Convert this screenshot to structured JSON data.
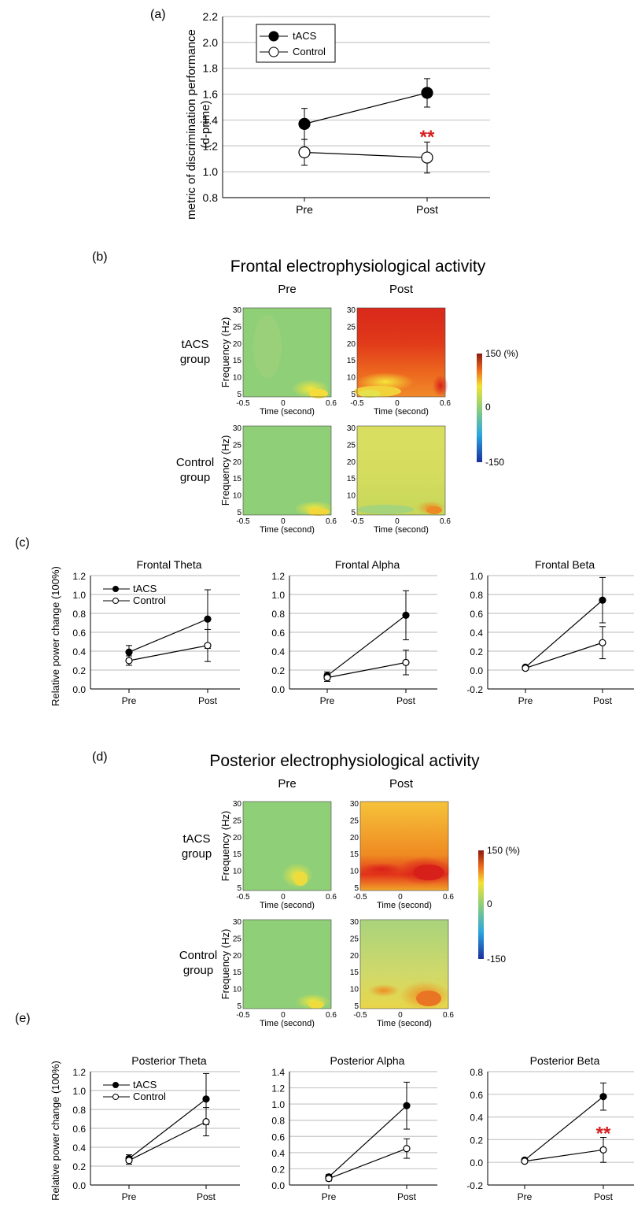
{
  "colors": {
    "tacs_marker": "#000000",
    "control_marker": "#ffffff",
    "grid": "#c8c8c8",
    "significance": "#d62020",
    "heatmap_low": "#1a2e9e",
    "heatmap_mid": "#8fcf78",
    "heatmap_high": "#8b1a10"
  },
  "panel_a": {
    "letter": "(a)",
    "ylabel": "metric of discrimination performance",
    "ylabel2": "(d-prime)",
    "significance": "**"
  },
  "panel_b": {
    "letter": "(b)",
    "title": "Frontal electrophysiological activity",
    "col_pre": "Pre",
    "col_post": "Post",
    "row_tacs_1": "tACS",
    "row_tacs_2": "group",
    "row_control_1": "Control",
    "row_control_2": "group",
    "freq_label": "Frequency (Hz)",
    "time_label": "Time (second)",
    "colorbar_max": "150 (%)",
    "colorbar_mid": "0",
    "colorbar_min": "-150"
  },
  "panel_c": {
    "letter": "(c)",
    "ylabel": "Relative power change (100%)"
  },
  "panel_d": {
    "letter": "(d)",
    "title": "Posterior electrophysiological activity",
    "col_pre": "Pre",
    "col_post": "Post",
    "row_tacs_1": "tACS",
    "row_tacs_2": "group",
    "row_control_1": "Control",
    "row_control_2": "group",
    "freq_label": "Frequency (Hz)",
    "time_label": "Time (second)",
    "colorbar_max": "150 (%)",
    "colorbar_mid": "0",
    "colorbar_min": "-150"
  },
  "panel_e": {
    "letter": "(e)",
    "ylabel": "Relative power change (100%)"
  },
  "chart_data": [
    {
      "id": "a",
      "type": "line",
      "categories": [
        "Pre",
        "Post"
      ],
      "ylim": [
        0.8,
        2.2
      ],
      "yticks": [
        "0.8",
        "1.0",
        "1.2",
        "1.4",
        "1.6",
        "1.8",
        "2.0",
        "2.2"
      ],
      "grid": true,
      "legend": "top-left",
      "series": [
        {
          "name": "tACS",
          "values": [
            1.37,
            1.61
          ],
          "errors": [
            0.12,
            0.11
          ]
        },
        {
          "name": "Control",
          "values": [
            1.15,
            1.11
          ],
          "errors": [
            0.1,
            0.12
          ]
        }
      ],
      "annotation": "** at Post"
    },
    {
      "id": "c1",
      "type": "line",
      "title": "Frontal Theta",
      "categories": [
        "Pre",
        "Post"
      ],
      "ylim": [
        0.0,
        1.2
      ],
      "yticks": [
        "0.0",
        "0.2",
        "0.4",
        "0.6",
        "0.8",
        "1.0",
        "1.2"
      ],
      "grid": true,
      "legend": "top-left",
      "series": [
        {
          "name": "tACS",
          "values": [
            0.39,
            0.74
          ],
          "errors": [
            0.07,
            0.31
          ]
        },
        {
          "name": "Control",
          "values": [
            0.3,
            0.46
          ],
          "errors": [
            0.05,
            0.17
          ]
        }
      ]
    },
    {
      "id": "c2",
      "type": "line",
      "title": "Frontal Alpha",
      "categories": [
        "Pre",
        "Post"
      ],
      "ylim": [
        0.0,
        1.2
      ],
      "yticks": [
        "0.0",
        "0.2",
        "0.4",
        "0.6",
        "0.8",
        "1.0",
        "1.2"
      ],
      "grid": true,
      "series": [
        {
          "values": [
            0.14,
            0.78
          ],
          "errors": [
            0.04,
            0.26
          ]
        },
        {
          "values": [
            0.12,
            0.28
          ],
          "errors": [
            0.04,
            0.13
          ]
        }
      ]
    },
    {
      "id": "c3",
      "type": "line",
      "title": "Frontal Beta",
      "categories": [
        "Pre",
        "Post"
      ],
      "ylim": [
        -0.2,
        1.0
      ],
      "yticks": [
        "-0.2",
        "0.0",
        "0.2",
        "0.4",
        "0.6",
        "0.8",
        "1.0"
      ],
      "grid": true,
      "series": [
        {
          "values": [
            0.03,
            0.74
          ],
          "errors": [
            0.01,
            0.24
          ]
        },
        {
          "values": [
            0.02,
            0.29
          ],
          "errors": [
            0.01,
            0.17
          ]
        }
      ]
    },
    {
      "id": "e1",
      "type": "line",
      "title": "Posterior Theta",
      "categories": [
        "Pre",
        "Post"
      ],
      "ylim": [
        0.0,
        1.2
      ],
      "yticks": [
        "0.0",
        "0.2",
        "0.4",
        "0.6",
        "0.8",
        "1.0",
        "1.2"
      ],
      "grid": true,
      "legend": "top-left",
      "series": [
        {
          "name": "tACS",
          "values": [
            0.28,
            0.91
          ],
          "errors": [
            0.04,
            0.27
          ]
        },
        {
          "name": "Control",
          "values": [
            0.26,
            0.67
          ],
          "errors": [
            0.04,
            0.15
          ]
        }
      ]
    },
    {
      "id": "e2",
      "type": "line",
      "title": "Posterior Alpha",
      "categories": [
        "Pre",
        "Post"
      ],
      "ylim": [
        0.0,
        1.4
      ],
      "yticks": [
        "0.0",
        "0.2",
        "0.4",
        "0.6",
        "0.8",
        "1.0",
        "1.2",
        "1.4"
      ],
      "grid": true,
      "series": [
        {
          "values": [
            0.1,
            0.98
          ],
          "errors": [
            0.03,
            0.29
          ]
        },
        {
          "values": [
            0.08,
            0.45
          ],
          "errors": [
            0.03,
            0.12
          ]
        }
      ]
    },
    {
      "id": "e3",
      "type": "line",
      "title": "Posterior Beta",
      "categories": [
        "Pre",
        "Post"
      ],
      "ylim": [
        -0.2,
        0.8
      ],
      "yticks": [
        "-0.2",
        "0.0",
        "0.2",
        "0.4",
        "0.6",
        "0.8"
      ],
      "grid": true,
      "series": [
        {
          "values": [
            0.02,
            0.58
          ],
          "errors": [
            0.01,
            0.12
          ]
        },
        {
          "values": [
            0.01,
            0.11
          ],
          "errors": [
            0.01,
            0.11
          ]
        }
      ],
      "annotation": "** at Post"
    },
    {
      "id": "heatmaps",
      "type": "heatmap",
      "x_range": [
        -0.5,
        0.6
      ],
      "y_range": [
        5,
        30
      ],
      "xticks": [
        "-0.5",
        "0",
        "0.6"
      ],
      "yticks": [
        "5",
        "10",
        "15",
        "20",
        "25",
        "30"
      ],
      "color_range": [
        -150,
        150
      ],
      "maps": [
        {
          "region": "Frontal",
          "group": "tACS",
          "session": "Pre",
          "pattern": "near zero, mild increase at 5 Hz from 0.2–0.6 s"
        },
        {
          "region": "Frontal",
          "group": "tACS",
          "session": "Post",
          "pattern": "strong broadband increase, highest above 20 Hz"
        },
        {
          "region": "Frontal",
          "group": "Control",
          "session": "Pre",
          "pattern": "near zero, mild increase at 5 Hz late"
        },
        {
          "region": "Frontal",
          "group": "Control",
          "session": "Post",
          "pattern": "mild increase, stronger at 5 Hz late"
        },
        {
          "region": "Posterior",
          "group": "tACS",
          "session": "Pre",
          "pattern": "near zero, mild increase at 5–8 Hz around 0.3 s"
        },
        {
          "region": "Posterior",
          "group": "tACS",
          "session": "Post",
          "pattern": "strong increase, highest at 8–10 Hz late"
        },
        {
          "region": "Posterior",
          "group": "Control",
          "session": "Pre",
          "pattern": "near zero, mild increase at 5 Hz late"
        },
        {
          "region": "Posterior",
          "group": "Control",
          "session": "Post",
          "pattern": "moderate increase at 5–10 Hz late"
        }
      ]
    }
  ]
}
